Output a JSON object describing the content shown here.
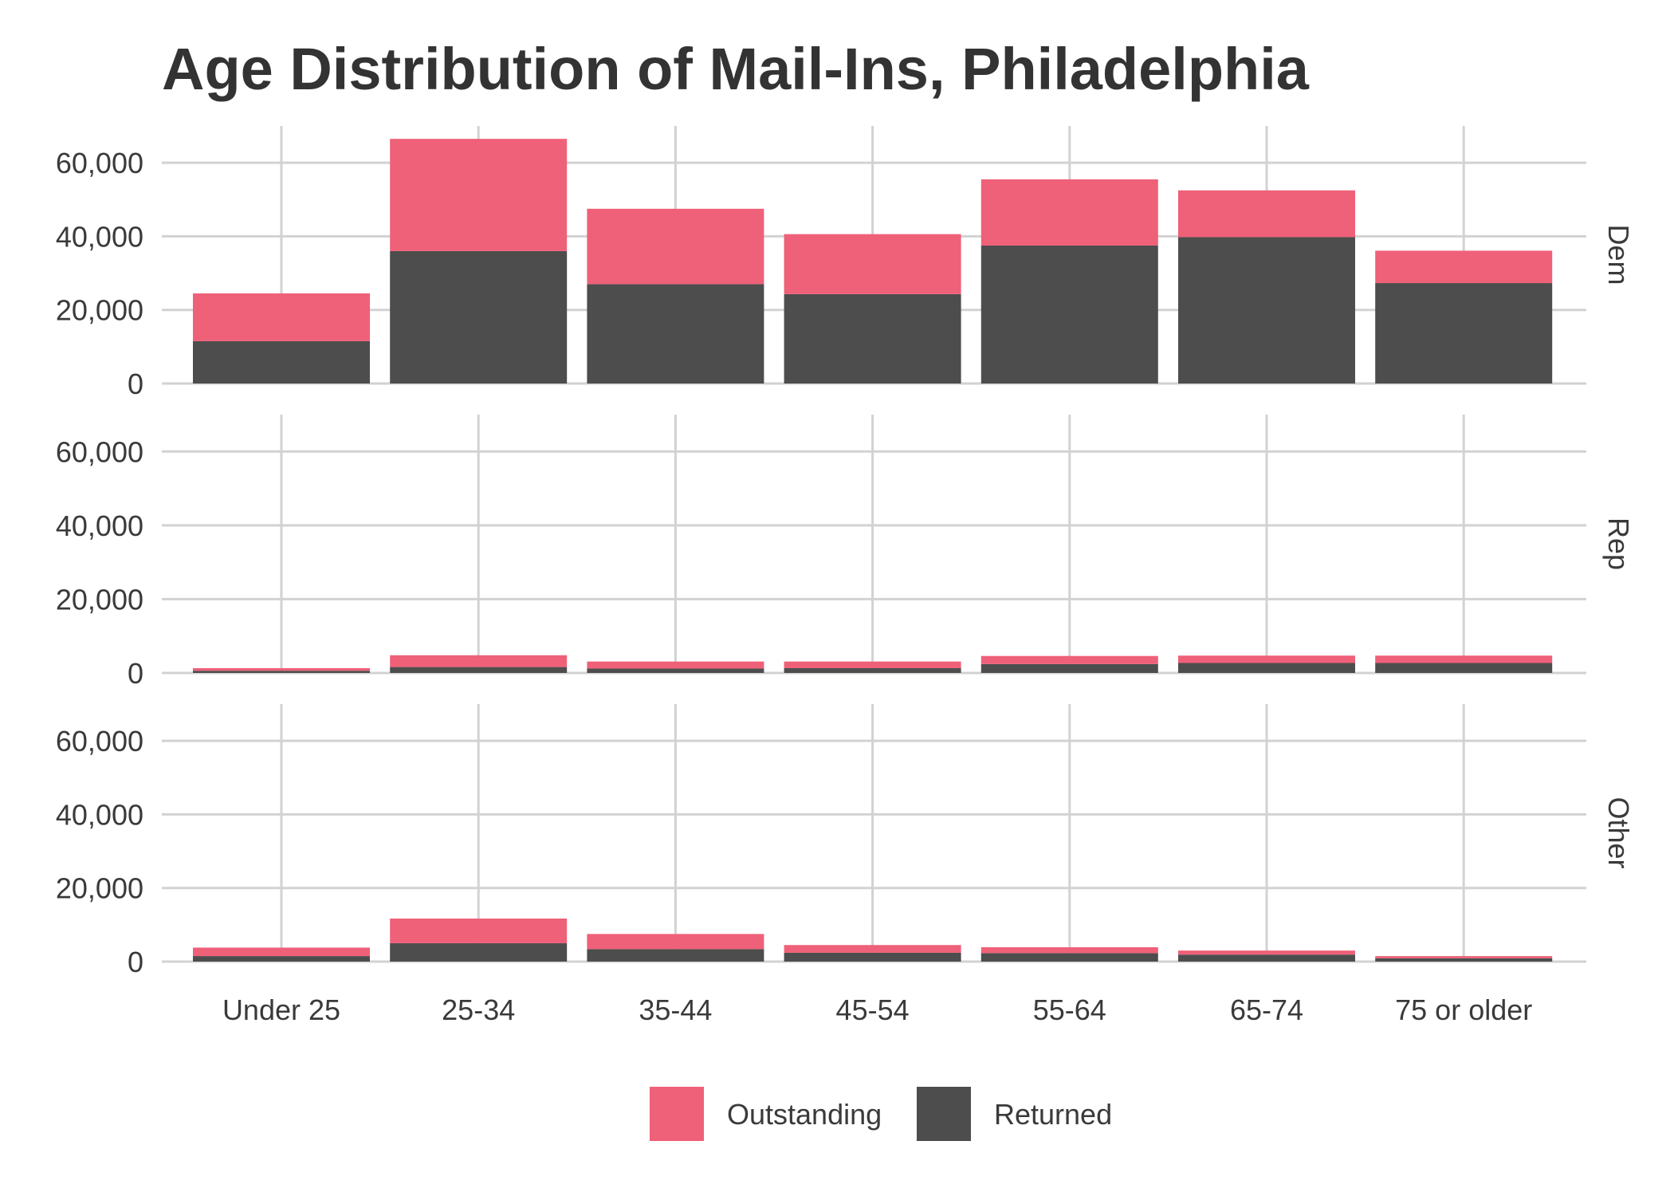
{
  "chart_data": {
    "type": "bar",
    "stacked": true,
    "faceted": true,
    "title": "Age Distribution of Mail-Ins, Philadelphia",
    "xlabel": "",
    "ylabel": "",
    "ylim": [
      0,
      70000
    ],
    "yticks": [
      0,
      20000,
      40000,
      60000
    ],
    "ytick_labels": [
      "0",
      "20,000",
      "40,000",
      "60,000"
    ],
    "grid": true,
    "legend_position": "bottom",
    "categories": [
      "Under 25",
      "25-34",
      "35-44",
      "45-54",
      "55-64",
      "65-74",
      "75 or older"
    ],
    "series_colors": {
      "Outstanding": "#ef6079",
      "Returned": "#4d4d4d"
    },
    "legend": [
      {
        "name": "Outstanding",
        "color": "#ef6079"
      },
      {
        "name": "Returned",
        "color": "#4d4d4d"
      }
    ],
    "facets": [
      {
        "name": "Dem",
        "series": [
          {
            "name": "Returned",
            "values": [
              11500,
              36000,
              27000,
              24300,
              37500,
              39800,
              27300
            ]
          },
          {
            "name": "Outstanding",
            "values": [
              13000,
              30500,
              20500,
              16300,
              18000,
              12700,
              8800
            ]
          }
        ]
      },
      {
        "name": "Rep",
        "series": [
          {
            "name": "Returned",
            "values": [
              600,
              1600,
              1200,
              1300,
              2400,
              2700,
              2700
            ]
          },
          {
            "name": "Outstanding",
            "values": [
              700,
              3200,
              1900,
              1800,
              2200,
              2000,
              2000
            ]
          }
        ]
      },
      {
        "name": "Other",
        "series": [
          {
            "name": "Returned",
            "values": [
              1500,
              5000,
              3400,
              2400,
              2300,
              1900,
              900
            ]
          },
          {
            "name": "Outstanding",
            "values": [
              2300,
              6700,
              4100,
              2100,
              1600,
              1100,
              600
            ]
          }
        ]
      }
    ]
  }
}
